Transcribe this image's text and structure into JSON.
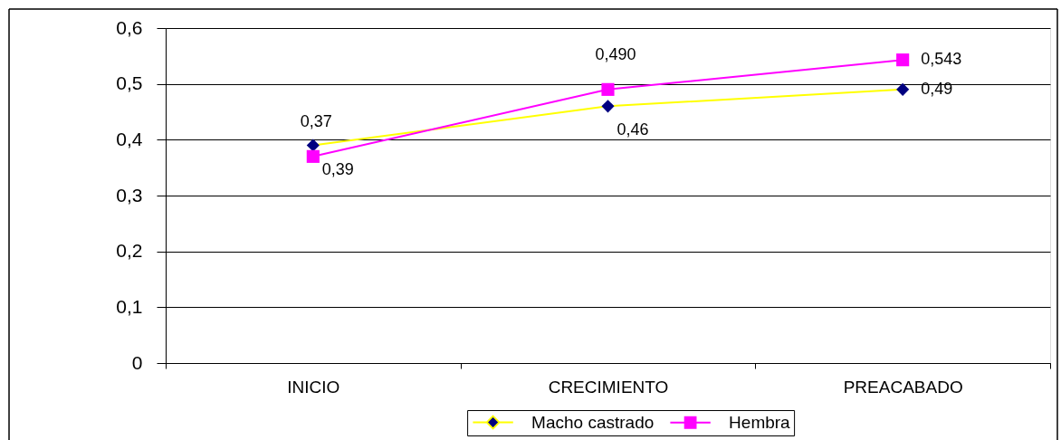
{
  "chart_data": {
    "type": "line",
    "categories": [
      "INICIO",
      "CRECIMIENTO",
      "PREACABADO"
    ],
    "series": [
      {
        "name": "Macho castrado",
        "color": "#ffff00",
        "colors": [
          "#000080",
          "#000080",
          "#000080"
        ],
        "marker": "diamond",
        "values": [
          0.39,
          0.46,
          0.49
        ],
        "value_labels": [
          "0,39",
          "0,46",
          "0,49"
        ]
      },
      {
        "name": "Hembra",
        "color": "#ff00ff",
        "marker": "square",
        "values": [
          0.37,
          0.49,
          0.543
        ],
        "value_labels": [
          "0,37",
          "0,490",
          "0,543"
        ]
      }
    ],
    "ylim": [
      0,
      0.6
    ],
    "yticks": [
      0,
      {
        "value": 0.1,
        "label": "0,1"
      },
      {
        "value": 0.2,
        "label": "0,2"
      },
      {
        "value": 0.3,
        "label": "0,3"
      },
      {
        "value": 0.4,
        "label": "0,4"
      },
      {
        "value": 0.5,
        "label": "0,5"
      },
      {
        "value": 0.6,
        "label": "0,6"
      }
    ],
    "grid": "y",
    "legend": "bottom"
  }
}
